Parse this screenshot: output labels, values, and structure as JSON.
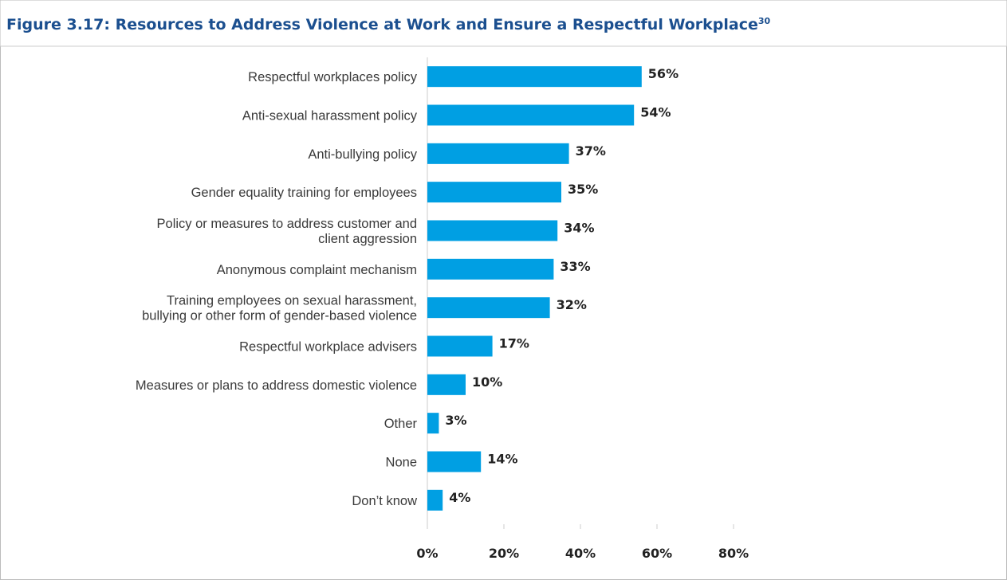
{
  "chart_data": {
    "type": "barh",
    "title": "Figure 3.17: Resources to Address Violence at Work and Ensure a Respectful Workplace",
    "title_note": "30",
    "categories": [
      "Respectful workplaces policy",
      "Anti-sexual harassment policy",
      "Anti-bullying policy",
      "Gender equality training for employees",
      "Policy or measures to address customer and\nclient aggression",
      "Anonymous complaint mechanism",
      "Training employees on sexual harassment,\nbullying or other form of gender-based violence",
      "Respectful workplace advisers",
      "Measures or plans to address domestic violence",
      "Other",
      "None",
      "Don’t know"
    ],
    "values": [
      56,
      54,
      37,
      35,
      34,
      33,
      32,
      17,
      10,
      3,
      14,
      4
    ],
    "value_labels": [
      "56%",
      "54%",
      "37%",
      "35%",
      "34%",
      "33%",
      "32%",
      "17%",
      "10%",
      "3%",
      "14%",
      "4%"
    ],
    "color": "#009fe3",
    "xlim": [
      0,
      80
    ],
    "xticks": [
      {
        "value": 0,
        "label": "0%"
      },
      {
        "value": 20,
        "label": "20%"
      },
      {
        "value": 40,
        "label": "40%"
      },
      {
        "value": 60,
        "label": "60%"
      },
      {
        "value": 80,
        "label": "80%"
      }
    ]
  }
}
